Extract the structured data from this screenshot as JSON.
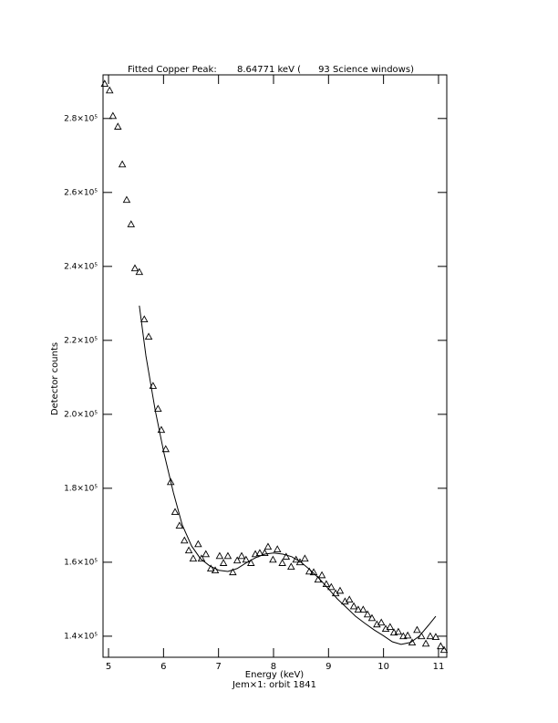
{
  "chart_data": {
    "type": "scatter",
    "title": "Fitted Copper Peak:       8.64771 keV (      93 Science windows)",
    "x_label": "Energy (keV)",
    "y_label": "Detector counts",
    "subtitle": "Jem×1: orbit 1841",
    "xlim": [
      4.9,
      11.15
    ],
    "ylim": [
      134300,
      291800
    ],
    "xticks": [
      5,
      6,
      7,
      8,
      9,
      10,
      11
    ],
    "yticks": [
      {
        "value": 140000,
        "label": "1.4×10⁵"
      },
      {
        "value": 160000,
        "label": "1.6×10⁵"
      },
      {
        "value": 180000,
        "label": "1.8×10⁵"
      },
      {
        "value": 200000,
        "label": "2.0×10⁵"
      },
      {
        "value": 220000,
        "label": "2.2×10⁵"
      },
      {
        "value": 240000,
        "label": "2.4×10⁵"
      },
      {
        "value": 260000,
        "label": "2.6×10⁵"
      },
      {
        "value": 280000,
        "label": "2.8×10⁵"
      }
    ],
    "series": [
      {
        "marker": "triangle",
        "color": "#000000",
        "x": [
          4.93,
          5.02,
          5.08,
          5.17,
          5.25,
          5.33,
          5.41,
          5.48,
          5.56,
          5.65,
          5.73,
          5.81,
          5.9,
          5.96,
          6.04,
          6.13,
          6.21,
          6.29,
          6.38,
          6.46,
          6.54,
          6.63,
          6.69,
          6.77,
          6.86,
          6.94,
          7.02,
          7.09,
          7.17,
          7.26,
          7.34,
          7.42,
          7.5,
          7.59,
          7.67,
          7.75,
          7.84,
          7.9,
          7.99,
          8.07,
          8.16,
          8.23,
          8.32,
          8.41,
          8.48,
          8.57,
          8.65,
          8.73,
          8.81,
          8.88,
          8.96,
          9.05,
          9.13,
          9.21,
          9.3,
          9.38,
          9.46,
          9.54,
          9.63,
          9.71,
          9.79,
          9.88,
          9.96,
          10.04,
          10.12,
          10.19,
          10.27,
          10.36,
          10.44,
          10.52,
          10.61,
          10.69,
          10.77,
          10.85,
          10.95,
          11.04,
          11.1
        ],
        "values": [
          289400,
          287600,
          280700,
          277800,
          267600,
          258000,
          251400,
          239500,
          238500,
          225700,
          221000,
          207700,
          201500,
          195800,
          190600,
          181700,
          173600,
          169900,
          165900,
          163200,
          161000,
          164900,
          161000,
          162200,
          158300,
          157800,
          161700,
          159800,
          161700,
          157300,
          160500,
          161700,
          160700,
          159800,
          162200,
          162500,
          162500,
          164200,
          160700,
          163500,
          159800,
          161500,
          158800,
          160700,
          160000,
          161000,
          157500,
          157300,
          155300,
          156500,
          154100,
          153300,
          151600,
          152300,
          149400,
          149900,
          148100,
          147200,
          147200,
          145900,
          144900,
          143200,
          143700,
          142000,
          142500,
          141000,
          141200,
          140000,
          140200,
          138300,
          141700,
          140000,
          138000,
          140000,
          139800,
          137300,
          136300
        ]
      },
      {
        "marker": "line",
        "color": "#000000",
        "x": [
          5.56,
          5.68,
          5.85,
          6.01,
          6.18,
          6.34,
          6.51,
          6.67,
          6.84,
          7.01,
          7.17,
          7.34,
          7.5,
          7.67,
          7.84,
          8.0,
          8.17,
          8.33,
          8.5,
          8.66,
          8.83,
          9.0,
          9.16,
          9.33,
          9.49,
          9.66,
          9.83,
          9.99,
          10.16,
          10.32,
          10.49,
          10.65,
          10.82,
          10.95
        ],
        "values": [
          229400,
          215800,
          201000,
          189400,
          178800,
          170100,
          164400,
          161000,
          159000,
          157800,
          157500,
          158300,
          159800,
          161200,
          162200,
          162500,
          162200,
          161500,
          160000,
          158000,
          155600,
          152800,
          150100,
          147700,
          145400,
          143500,
          141700,
          140200,
          138500,
          137800,
          138300,
          140000,
          143000,
          145400
        ]
      }
    ]
  }
}
